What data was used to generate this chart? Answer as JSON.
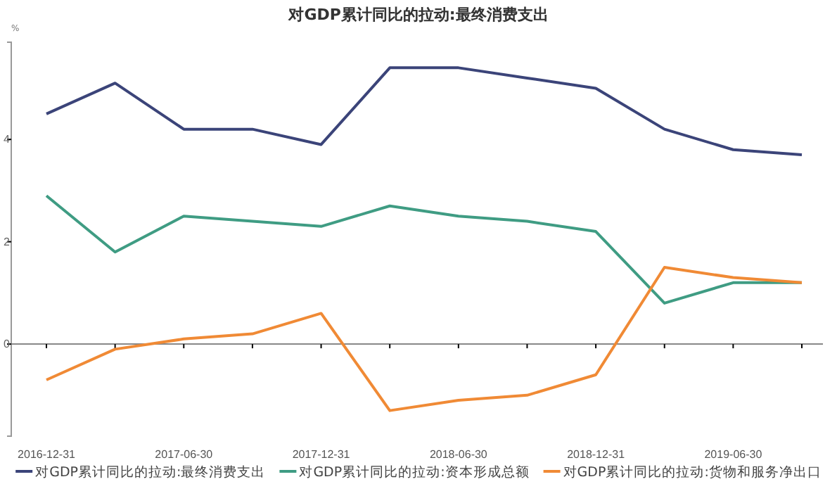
{
  "chart_data": {
    "type": "line",
    "title": "对GDP累计同比的拉动:最终消费支出",
    "ylabel": "%",
    "categories": [
      "2016-12-31",
      null,
      "2017-06-30",
      null,
      "2017-12-31",
      null,
      "2018-06-30",
      null,
      "2018-12-31",
      null,
      "2019-06-30",
      null
    ],
    "series": [
      {
        "name": "对GDP累计同比的拉动:最终消费支出",
        "color": "#3b4479",
        "values": [
          4.5,
          5.1,
          4.2,
          4.2,
          3.9,
          5.4,
          5.4,
          5.2,
          5.0,
          4.2,
          3.8,
          3.7
        ]
      },
      {
        "name": "对GDP累计同比的拉动:资本形成总额",
        "color": "#3f9c83",
        "values": [
          2.9,
          1.8,
          2.5,
          2.4,
          2.3,
          2.7,
          2.5,
          2.4,
          2.2,
          0.8,
          1.2,
          1.2
        ]
      },
      {
        "name": "对GDP累计同比的拉动:货物和服务净出口",
        "color": "#f08a35",
        "values": [
          -0.7,
          -0.1,
          0.1,
          0.2,
          0.6,
          -1.3,
          -1.1,
          -1.0,
          -0.6,
          1.5,
          1.3,
          1.2
        ]
      }
    ],
    "ylim": [
      -1.8,
      5.9
    ],
    "yticks": [
      0,
      2,
      4
    ],
    "legend": "bottom",
    "marker": "none",
    "line_style": "solid"
  }
}
